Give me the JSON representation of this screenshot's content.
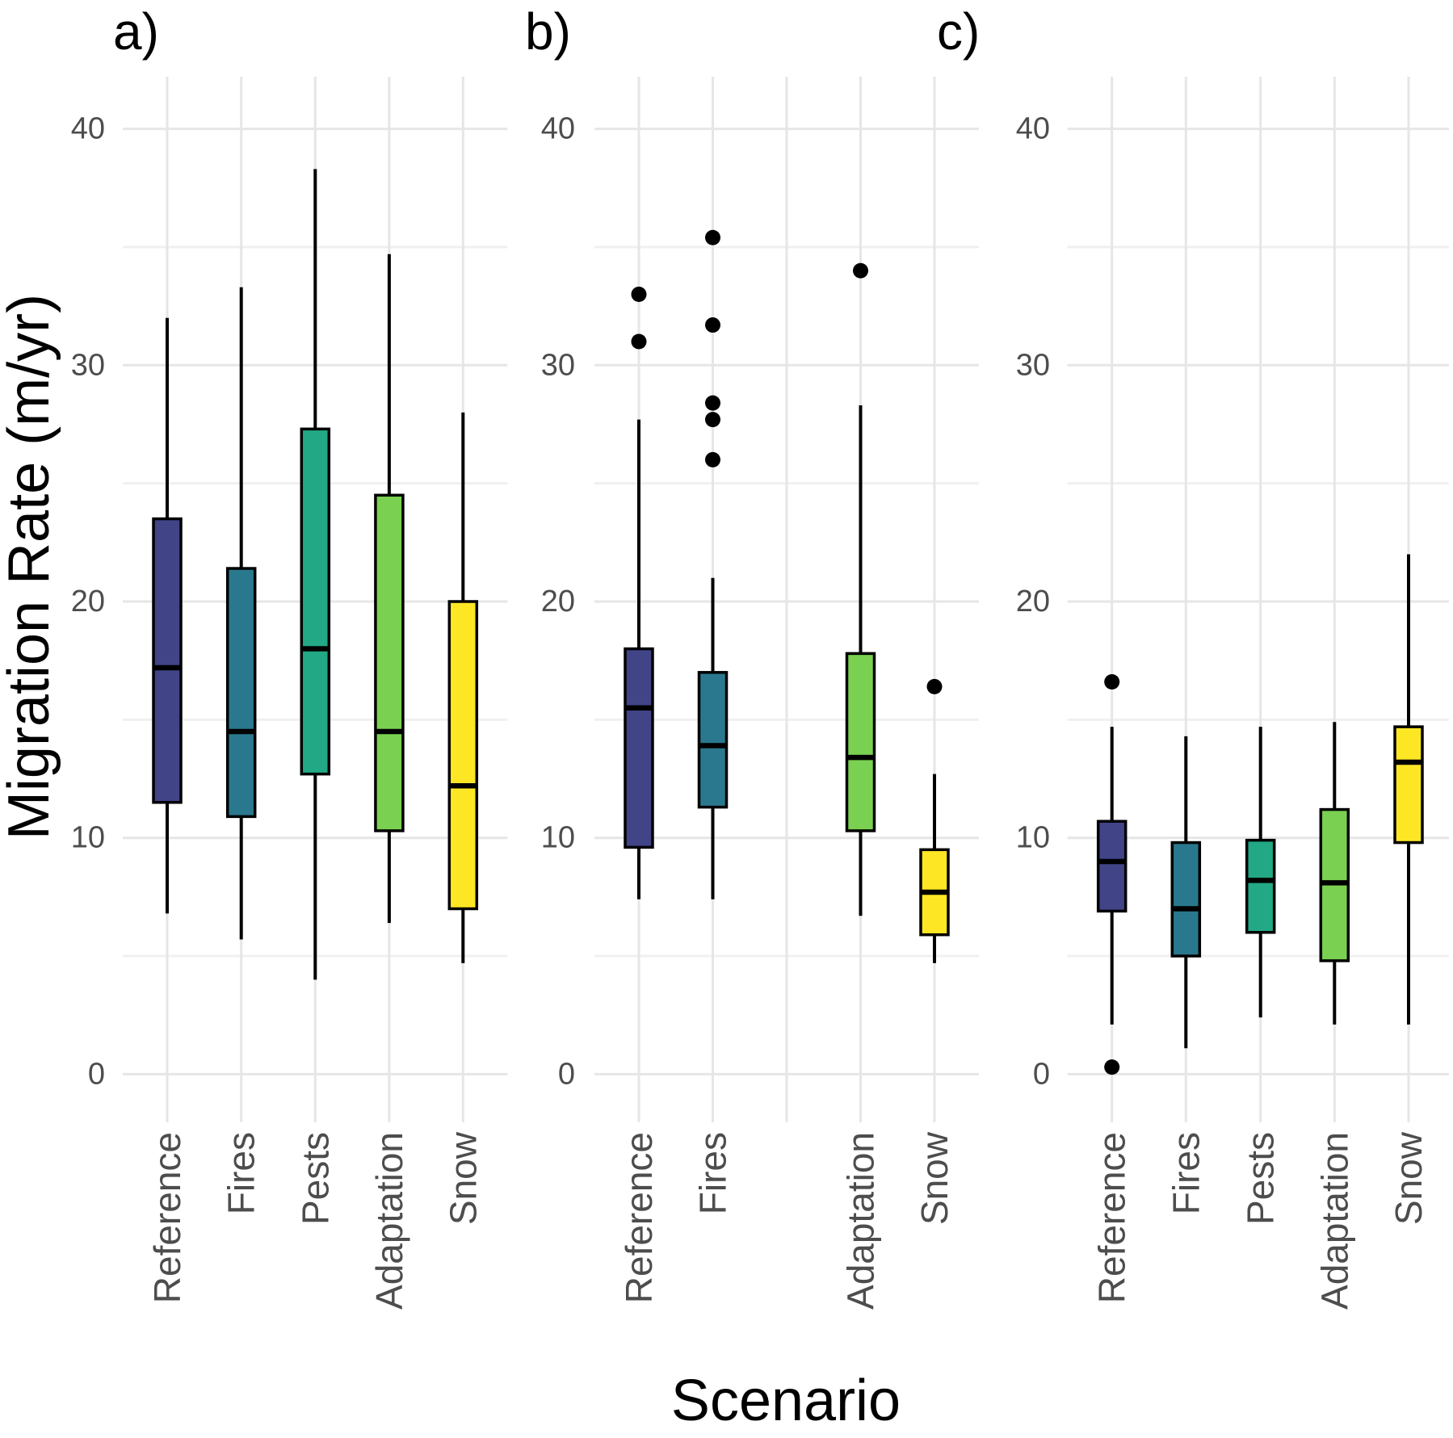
{
  "chart_data": {
    "type": "boxplot",
    "ylabel": "Migration Rate (m/yr)",
    "xlabel": "Scenario",
    "ylim": [
      -2.2,
      42.2
    ],
    "yticks": [
      0,
      10,
      20,
      30,
      40
    ],
    "minor_gridlines": [
      5,
      15,
      25,
      35
    ],
    "grid": "on",
    "legend": "none",
    "categories": [
      "Reference",
      "Fires",
      "Pests",
      "Adaptation",
      "Snow"
    ],
    "colors": {
      "Reference": "#414487",
      "Fires": "#2A788E",
      "Pests": "#22A884",
      "Adaptation": "#7AD151",
      "Snow": "#FDE725"
    },
    "style": {
      "box_border": "#000000",
      "whisker": "#000000",
      "outlier": "#000000",
      "tick_label_color": "#4d4d4d",
      "category_label_color": "#4d4d4d",
      "major_grid_color": "#e6e6e6",
      "minor_grid_color": "#f0f0f0",
      "background": "#ffffff"
    },
    "panels": [
      {
        "label": "a)",
        "boxes": [
          {
            "category": "Reference",
            "slot": 0,
            "whisker_low": 6.8,
            "q1": 11.5,
            "median": 17.2,
            "q3": 23.5,
            "whisker_high": 32.0,
            "outliers": []
          },
          {
            "category": "Fires",
            "slot": 1,
            "whisker_low": 5.7,
            "q1": 10.9,
            "median": 14.5,
            "q3": 21.4,
            "whisker_high": 33.3,
            "outliers": []
          },
          {
            "category": "Pests",
            "slot": 2,
            "whisker_low": 4.0,
            "q1": 12.7,
            "median": 18.0,
            "q3": 27.3,
            "whisker_high": 38.3,
            "outliers": []
          },
          {
            "category": "Adaptation",
            "slot": 3,
            "whisker_low": 6.4,
            "q1": 10.3,
            "median": 14.5,
            "q3": 24.5,
            "whisker_high": 34.7,
            "outliers": []
          },
          {
            "category": "Snow",
            "slot": 4,
            "whisker_low": 4.7,
            "q1": 7.0,
            "median": 12.2,
            "q3": 20.0,
            "whisker_high": 28.0,
            "outliers": []
          }
        ]
      },
      {
        "label": "b)",
        "boxes": [
          {
            "category": "Reference",
            "slot": 0,
            "whisker_low": 7.4,
            "q1": 9.6,
            "median": 15.5,
            "q3": 18.0,
            "whisker_high": 27.7,
            "outliers": [
              31.0,
              33.0
            ]
          },
          {
            "category": "Fires",
            "slot": 1,
            "whisker_low": 7.4,
            "q1": 11.3,
            "median": 13.9,
            "q3": 17.0,
            "whisker_high": 21.0,
            "outliers": [
              26.0,
              27.7,
              28.4,
              31.7,
              35.4
            ]
          },
          {
            "category": "Adaptation",
            "slot": 3,
            "whisker_low": 6.7,
            "q1": 10.3,
            "median": 13.4,
            "q3": 17.8,
            "whisker_high": 28.3,
            "outliers": [
              34.0
            ]
          },
          {
            "category": "Snow",
            "slot": 4,
            "whisker_low": 4.7,
            "q1": 5.9,
            "median": 7.7,
            "q3": 9.5,
            "whisker_high": 12.7,
            "outliers": [
              16.4
            ]
          }
        ]
      },
      {
        "label": "c)",
        "boxes": [
          {
            "category": "Reference",
            "slot": 0,
            "whisker_low": 2.1,
            "q1": 6.9,
            "median": 9.0,
            "q3": 10.7,
            "whisker_high": 14.7,
            "outliers": [
              16.6,
              0.3
            ]
          },
          {
            "category": "Fires",
            "slot": 1,
            "whisker_low": 1.1,
            "q1": 5.0,
            "median": 7.0,
            "q3": 9.8,
            "whisker_high": 14.3,
            "outliers": []
          },
          {
            "category": "Pests",
            "slot": 2,
            "whisker_low": 2.4,
            "q1": 6.0,
            "median": 8.2,
            "q3": 9.9,
            "whisker_high": 14.7,
            "outliers": []
          },
          {
            "category": "Adaptation",
            "slot": 3,
            "whisker_low": 2.1,
            "q1": 4.8,
            "median": 8.1,
            "q3": 11.2,
            "whisker_high": 14.9,
            "outliers": []
          },
          {
            "category": "Snow",
            "slot": 4,
            "whisker_low": 2.1,
            "q1": 9.8,
            "median": 13.2,
            "q3": 14.7,
            "whisker_high": 22.0,
            "outliers": []
          }
        ]
      }
    ]
  }
}
